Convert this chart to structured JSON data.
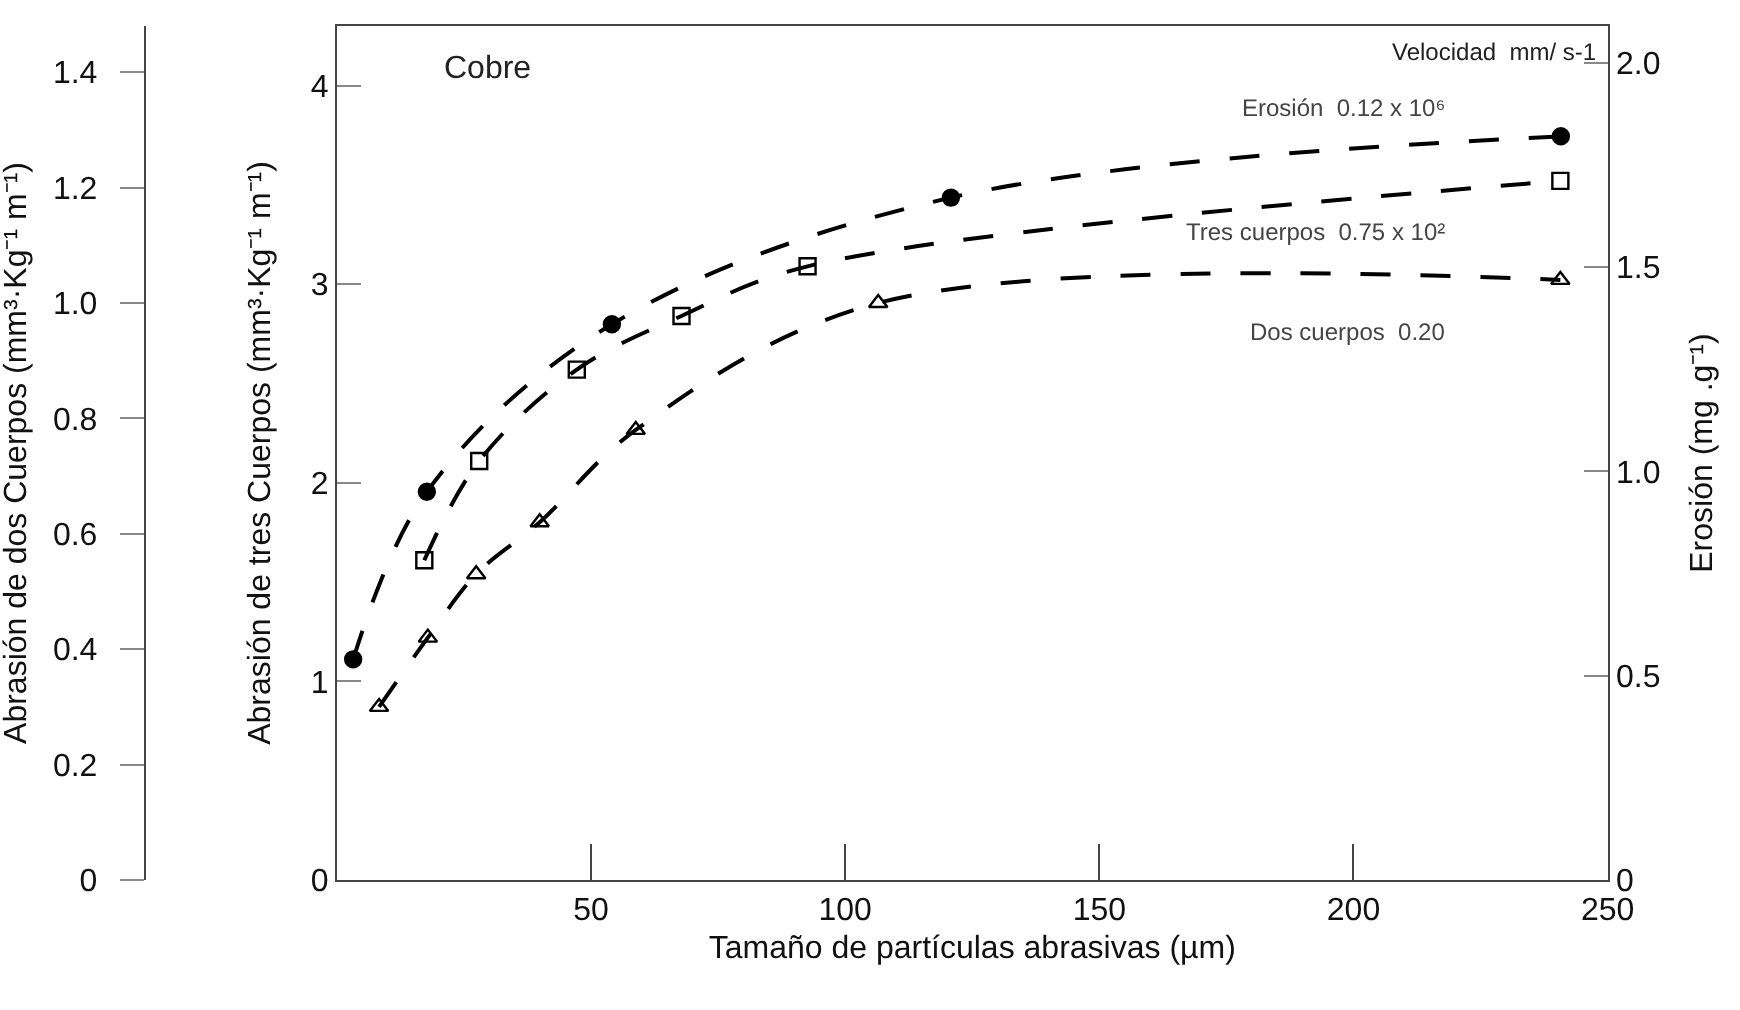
{
  "chart_data": {
    "type": "line",
    "xlabel": "Tamaño de partículas abrasivas (µm)",
    "ylabel": "Abrasión de tres Cuerpos (mm³·Kg⁻¹ m⁻¹)",
    "y2label": "Erosión (mg .g⁻¹)",
    "y3label": "Abrasión de dos Cuerpos (mm³·Kg⁻¹ m⁻¹)",
    "xlim": [
      0,
      250
    ],
    "xticks": [
      50,
      100,
      150,
      200,
      250
    ],
    "ylim": [
      0,
      4.3
    ],
    "yticks": [
      0,
      1,
      2,
      3,
      4
    ],
    "y2lim": [
      0,
      2.09
    ],
    "y2ticks": [
      0,
      {
        "value": 0.5,
        "label": "0.5"
      },
      {
        "value": 1,
        "label": "1.0"
      },
      {
        "value": 1.5,
        "label": "1.5"
      },
      {
        "value": 2,
        "label": "2.0"
      }
    ],
    "y3lim": [
      0,
      1.48
    ],
    "y3ticks": [
      0,
      0.2,
      0.4,
      0.6,
      0.8,
      {
        "value": 1,
        "label": "1.0"
      },
      1.2,
      1.4
    ],
    "legend": false,
    "line_style": "dashed",
    "annotations": [
      "Cobre",
      "Velocidad  mm/ s-1"
    ],
    "series": [
      {
        "name": "Erosión  0.12 x 10⁶",
        "color": "#000000",
        "axis": "y2",
        "marker": "circle",
        "x": [
          3.2,
          17.7,
          54.1,
          120.8,
          240.8
        ],
        "values": [
          0.54,
          0.95,
          1.36,
          1.67,
          1.82
        ]
      },
      {
        "name": "Tres cuerpos  0.75 x 10²",
        "color": "#000000",
        "marker": "square",
        "x": [
          17.2,
          28.0,
          47.2,
          67.8,
          92.6,
          240.7
        ],
        "values": [
          1.61,
          2.11,
          2.57,
          2.84,
          3.09,
          3.52
        ]
      },
      {
        "name": "Dos cuerpos  0.20",
        "color": "#000000",
        "axis": "y3",
        "marker": "triangle",
        "x": [
          8.3,
          17.9,
          27.4,
          39.9,
          58.8,
          106.5,
          240.7
        ],
        "values": [
          0.3,
          0.42,
          0.53,
          0.62,
          0.78,
          1.0,
          1.04
        ]
      }
    ]
  }
}
